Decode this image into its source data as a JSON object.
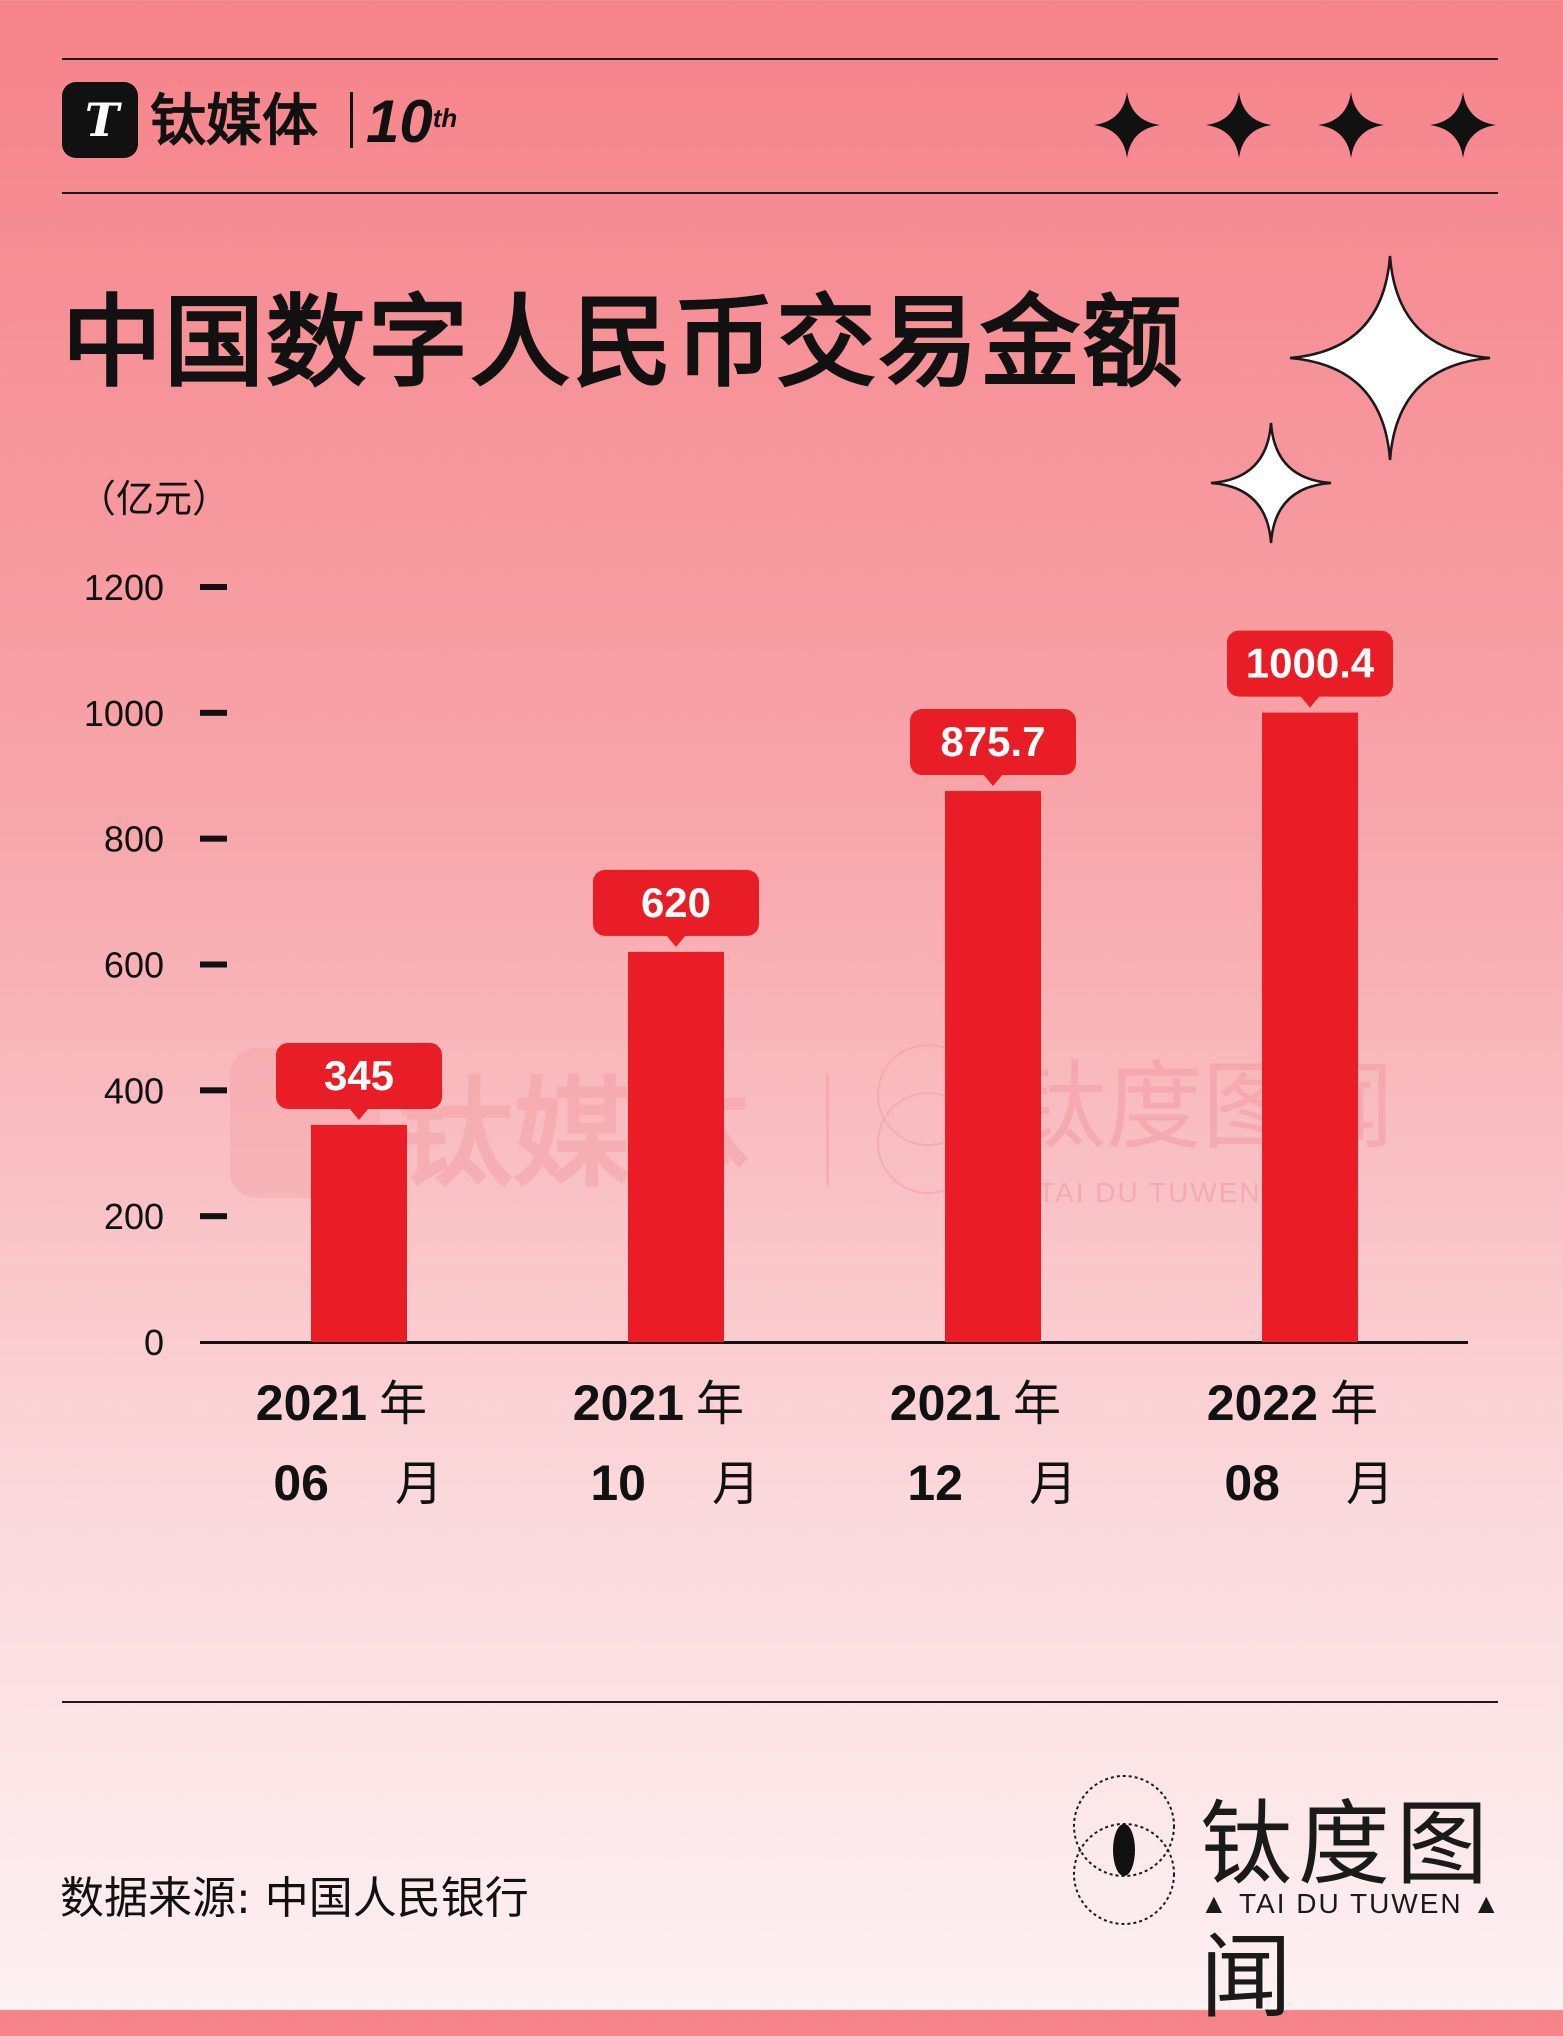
{
  "header": {
    "logo_glyph": "T",
    "brand_name": "钛媒体",
    "anniversary": "10",
    "anniversary_suffix": "th",
    "star_icons": [
      "sparkle-icon",
      "sparkle-icon",
      "sparkle-icon",
      "sparkle-icon"
    ]
  },
  "title": "中国数字人民币交易金额",
  "unit_label": "（亿元）",
  "chart_data": {
    "type": "bar",
    "title": "中国数字人民币交易金额",
    "ylabel": "（亿元）",
    "xlabel": "",
    "ylim": [
      0,
      1200
    ],
    "yticks": [
      0,
      200,
      400,
      600,
      800,
      1000,
      1200
    ],
    "categories": [
      {
        "line1_num": "2021",
        "line1_unit": "年",
        "line2_num": "06",
        "line2_unit": "月"
      },
      {
        "line1_num": "2021",
        "line1_unit": "年",
        "line2_num": "10",
        "line2_unit": "月"
      },
      {
        "line1_num": "2021",
        "line1_unit": "年",
        "line2_num": "12",
        "line2_unit": "月"
      },
      {
        "line1_num": "2022",
        "line1_unit": "年",
        "line2_num": "08",
        "line2_unit": "月"
      }
    ],
    "values": [
      345,
      620,
      875.7,
      1000.4
    ],
    "value_labels": [
      "345",
      "620",
      "875.7",
      "1000.4"
    ],
    "bar_color": "#ea1c25",
    "label_color": "#e81d25",
    "grid": false
  },
  "watermark": {
    "brand": "钛媒体",
    "partner": "钛度图闻",
    "partner_en": "TAI DU TUWEN"
  },
  "footer": {
    "source": "数据来源: 中国人民银行",
    "brand": "钛度图闻",
    "brand_en": "▲ TAI DU TUWEN ▲"
  }
}
